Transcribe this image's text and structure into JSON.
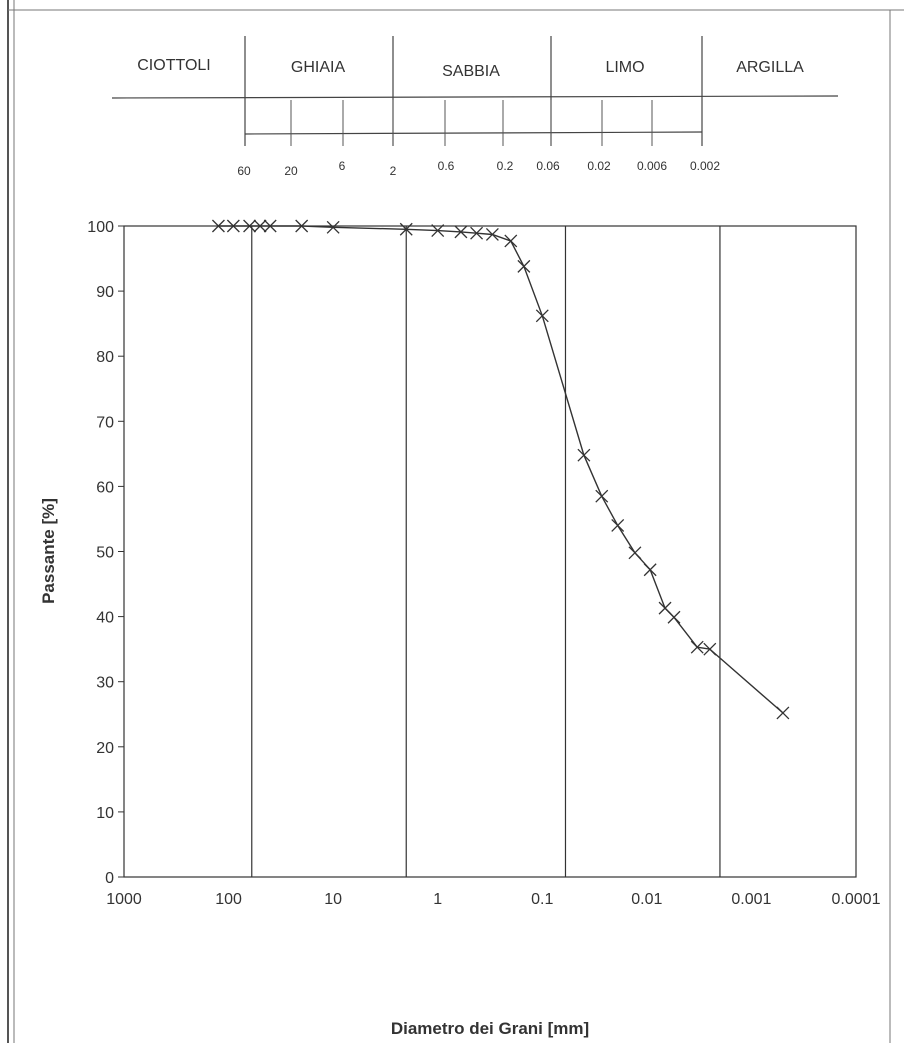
{
  "grain_classes": {
    "labels": [
      "CIOTTOLI",
      "GHIAIA",
      "SABBIA",
      "LIMO",
      "ARGILLA"
    ],
    "tick_labels": [
      "60",
      "20",
      "6",
      "2",
      "0.6",
      "0.2",
      "0.06",
      "0.02",
      "0.006",
      "0.002"
    ]
  },
  "chart_data": {
    "type": "line",
    "xlabel": "Diametro dei Grani [mm]",
    "ylabel": "Passante [%]",
    "x_scale": "log",
    "x_reversed": true,
    "xlim": [
      1000,
      0.0001
    ],
    "ylim": [
      0,
      100
    ],
    "x_ticks": [
      "1000",
      "100",
      "10",
      "1",
      "0.1",
      "0.01",
      "0.001",
      "0.0001"
    ],
    "y_ticks": [
      "0",
      "10",
      "20",
      "30",
      "40",
      "50",
      "60",
      "70",
      "80",
      "90",
      "100"
    ],
    "vertical_lines_at": [
      60,
      2,
      0.06,
      0.002
    ],
    "grid": false,
    "legend": "none",
    "marker": "x",
    "line_color": "#333333",
    "series": [
      {
        "x": [
          125,
          90,
          63,
          50,
          40,
          20,
          10,
          2,
          1,
          0.6,
          0.425,
          0.3,
          0.2,
          0.15,
          0.1,
          0.04,
          0.027,
          0.019,
          0.013,
          0.0093,
          0.0067,
          0.0055,
          0.0033,
          0.0025,
          0.0005
        ],
        "y": [
          100,
          100,
          100,
          100,
          100,
          100,
          99.8,
          99.5,
          99.3,
          99.1,
          98.9,
          98.7,
          97.7,
          93.8,
          86.2,
          64.8,
          58.5,
          54.0,
          49.8,
          47.2,
          41.3,
          39.9,
          35.3,
          35.0,
          25.2
        ]
      }
    ]
  }
}
